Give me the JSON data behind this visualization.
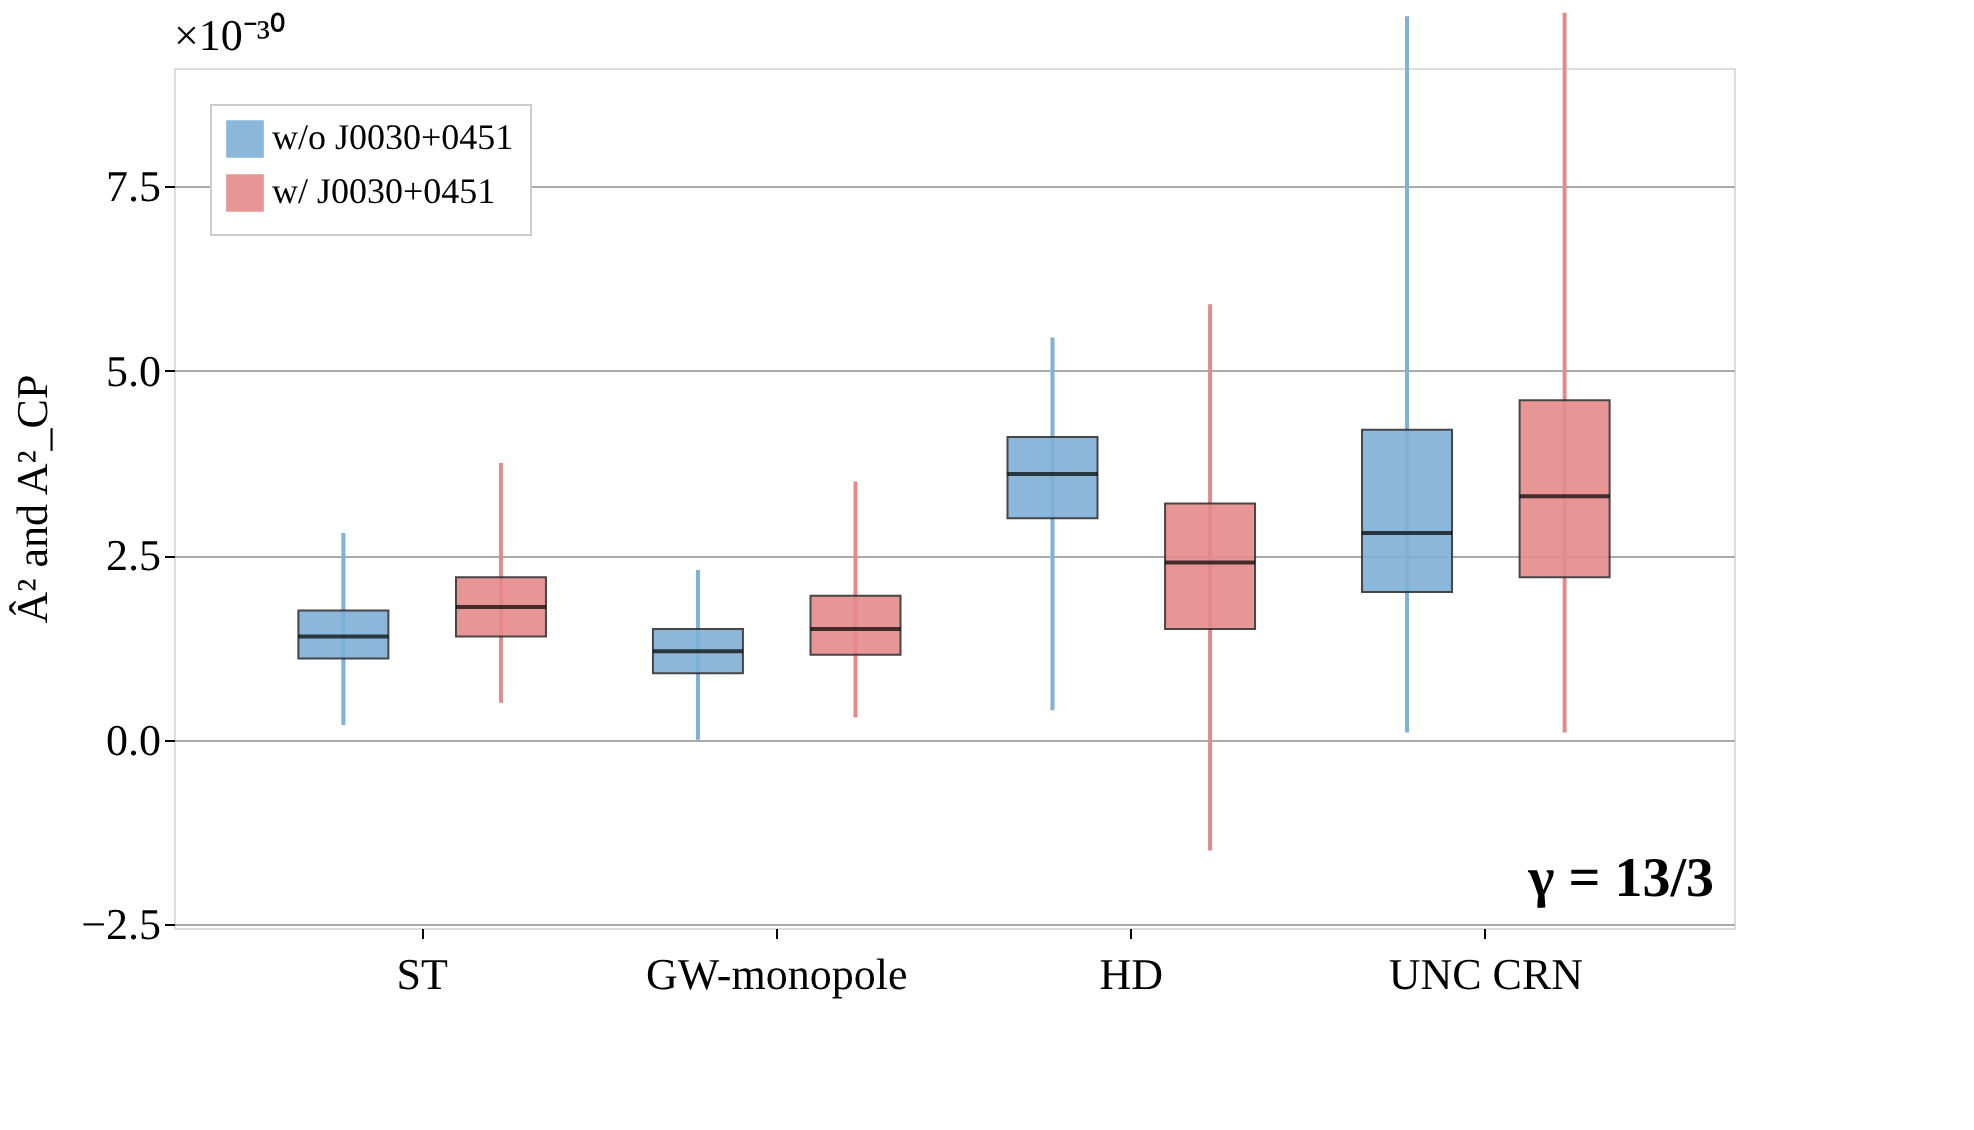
{
  "chart_data": {
    "type": "box",
    "ylabel": "Â² and A²_CP",
    "categories": [
      "ST",
      "GW-monopole",
      "HD",
      "UNC CRN"
    ],
    "series": [
      {
        "name": "w/o J0030+0451",
        "color": "#7fb0d6",
        "boxes": [
          {
            "low": 0.2,
            "q1": 1.1,
            "median": 1.4,
            "q3": 1.75,
            "high": 2.8
          },
          {
            "low": 0.0,
            "q1": 0.9,
            "median": 1.2,
            "q3": 1.5,
            "high": 2.3
          },
          {
            "low": 0.4,
            "q1": 3.0,
            "median": 3.6,
            "q3": 4.1,
            "high": 5.45
          },
          {
            "low": 0.1,
            "q1": 2.0,
            "median": 2.8,
            "q3": 4.2,
            "high": 9.8
          }
        ]
      },
      {
        "name": "w/ J0030+0451",
        "color": "#e58a8a",
        "boxes": [
          {
            "low": 0.5,
            "q1": 1.4,
            "median": 1.8,
            "q3": 2.2,
            "high": 3.75
          },
          {
            "low": 0.3,
            "q1": 1.15,
            "median": 1.5,
            "q3": 1.95,
            "high": 3.5
          },
          {
            "low": -1.5,
            "q1": 1.5,
            "median": 2.4,
            "q3": 3.2,
            "high": 5.9
          },
          {
            "low": 0.1,
            "q1": 2.2,
            "median": 3.3,
            "q3": 4.6,
            "high": 9.85
          }
        ]
      }
    ],
    "ylim": [
      -2.55,
      9.1
    ],
    "yticks": [
      {
        "value": -2.5,
        "label": "−2.5"
      },
      {
        "value": 0,
        "label": "0.0"
      },
      {
        "value": 2.5,
        "label": "2.5"
      },
      {
        "value": 5,
        "label": "5.0"
      },
      {
        "value": 7.5,
        "label": "7.5"
      }
    ],
    "grid": "y",
    "legend": "top left",
    "annotations": [
      "×10⁻³⁰",
      "γ = 13/3"
    ]
  }
}
